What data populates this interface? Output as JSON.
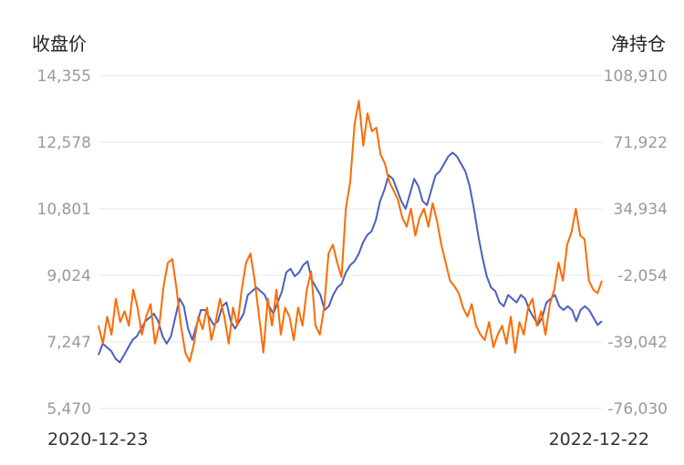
{
  "chart_data": {
    "type": "line",
    "left_axis_title": "收盘价",
    "right_axis_title": "净持仓",
    "left_ticks": [
      "14,355",
      "12,578",
      "10,801",
      "9,024",
      "7,247",
      "5,470"
    ],
    "right_ticks": [
      "108,910",
      "71,922",
      "34,934",
      "-2,054",
      "-39,042",
      "-76,030"
    ],
    "left_range": [
      5470,
      14355
    ],
    "right_range": [
      -76030,
      108910
    ],
    "x_start_label": "2020-12-23",
    "x_end_label": "2022-12-22",
    "grid": true,
    "series": [
      {
        "color": "#4a5fc1",
        "axis": "left",
        "values": [
          6900,
          7200,
          7100,
          7000,
          6800,
          6700,
          6900,
          7100,
          7300,
          7400,
          7600,
          7800,
          7900,
          8000,
          7800,
          7400,
          7200,
          7400,
          7900,
          8400,
          8200,
          7600,
          7300,
          7700,
          8100,
          8100,
          7900,
          7700,
          7800,
          8200,
          8300,
          7800,
          7600,
          7800,
          8000,
          8500,
          8600,
          8700,
          8600,
          8500,
          8200,
          8000,
          8300,
          8600,
          9100,
          9200,
          9000,
          9100,
          9300,
          9400,
          8900,
          8700,
          8500,
          8100,
          8200,
          8500,
          8700,
          8800,
          9100,
          9300,
          9400,
          9600,
          9900,
          10100,
          10200,
          10500,
          11000,
          11300,
          11700,
          11600,
          11300,
          11000,
          10800,
          11200,
          11600,
          11400,
          11000,
          10900,
          11300,
          11700,
          11800,
          12000,
          12200,
          12300,
          12200,
          12000,
          11800,
          11400,
          10800,
          10100,
          9500,
          9000,
          8700,
          8600,
          8300,
          8200,
          8500,
          8400,
          8300,
          8500,
          8400,
          8100,
          7900,
          7700,
          7900,
          8300,
          8400,
          8500,
          8200,
          8100,
          8200,
          8100,
          7800,
          8100,
          8200,
          8100,
          7900,
          7700,
          7800
        ]
      },
      {
        "color": "#ff6a00",
        "axis": "right",
        "values": [
          -30000,
          -40000,
          -25000,
          -35000,
          -15000,
          -28000,
          -22000,
          -30000,
          -10000,
          -20000,
          -35000,
          -25000,
          -18000,
          -40000,
          -30000,
          -8000,
          5000,
          7000,
          -10000,
          -30000,
          -45000,
          -50000,
          -40000,
          -25000,
          -32000,
          -20000,
          -38000,
          -28000,
          -15000,
          -25000,
          -40000,
          -20000,
          -30000,
          -10000,
          5000,
          10000,
          -5000,
          -25000,
          -45000,
          -15000,
          -30000,
          -10000,
          -35000,
          -20000,
          -25000,
          -38000,
          -20000,
          -30000,
          -10000,
          0,
          -30000,
          -35000,
          -20000,
          10000,
          15000,
          5000,
          -3000,
          35000,
          50000,
          82000,
          95000,
          70000,
          88000,
          78000,
          80000,
          65000,
          60000,
          50000,
          45000,
          40000,
          30000,
          25000,
          35000,
          20000,
          30000,
          35000,
          25000,
          38000,
          28000,
          15000,
          5000,
          -5000,
          -8000,
          -12000,
          -20000,
          -25000,
          -18000,
          -30000,
          -35000,
          -38000,
          -28000,
          -42000,
          -35000,
          -30000,
          -40000,
          -25000,
          -45000,
          -28000,
          -35000,
          -20000,
          -15000,
          -30000,
          -22000,
          -35000,
          -18000,
          -10000,
          5000,
          -5000,
          15000,
          22000,
          35000,
          20000,
          18000,
          -5000,
          -10000,
          -12000,
          -5000
        ]
      }
    ]
  }
}
